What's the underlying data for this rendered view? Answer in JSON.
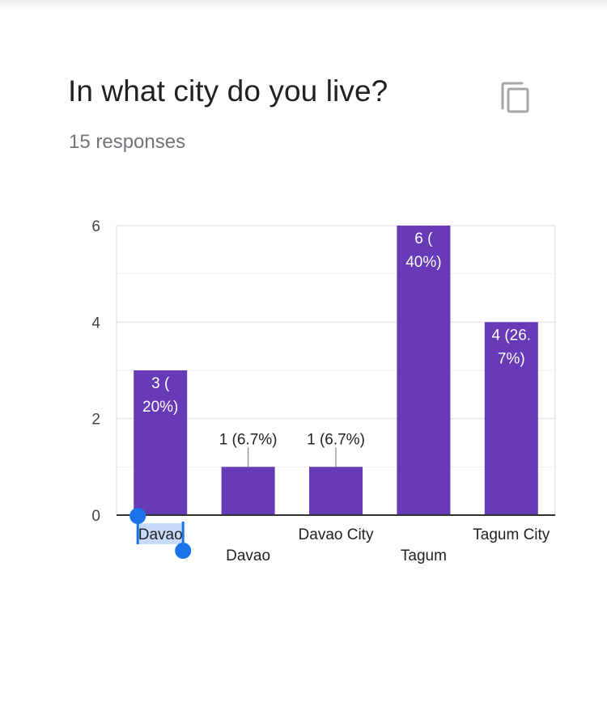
{
  "card": {
    "title": "In what city do you live?",
    "responses": "15 responses",
    "copy_icon": "copy-icon"
  },
  "colors": {
    "bar": "#673ab7",
    "grid": "#e6e6e6",
    "axis": "#333333",
    "label_dark": "#222222",
    "label_light": "#ffffff",
    "selection_handle": "#1a73e8",
    "selection_highlight": "#c6dafc"
  },
  "chart_data": {
    "type": "bar",
    "categories": [
      "Davao",
      "Davao",
      "Davao City",
      "Tagum",
      "Tagum City"
    ],
    "values": [
      3,
      1,
      1,
      6,
      4
    ],
    "data_labels": [
      [
        "3 (",
        "20%)"
      ],
      [
        "1 (6.7%)"
      ],
      [
        "1 (6.7%)"
      ],
      [
        "6 (",
        "40%)"
      ],
      [
        "4 (26.",
        "7%)"
      ]
    ],
    "label_inside": [
      true,
      false,
      false,
      true,
      true
    ],
    "ylim": [
      0,
      6
    ],
    "yticks": [
      "0",
      "2",
      "4",
      "6"
    ],
    "grid": true,
    "minor_grid": true,
    "legend": "none",
    "selected_category_index": 0
  }
}
